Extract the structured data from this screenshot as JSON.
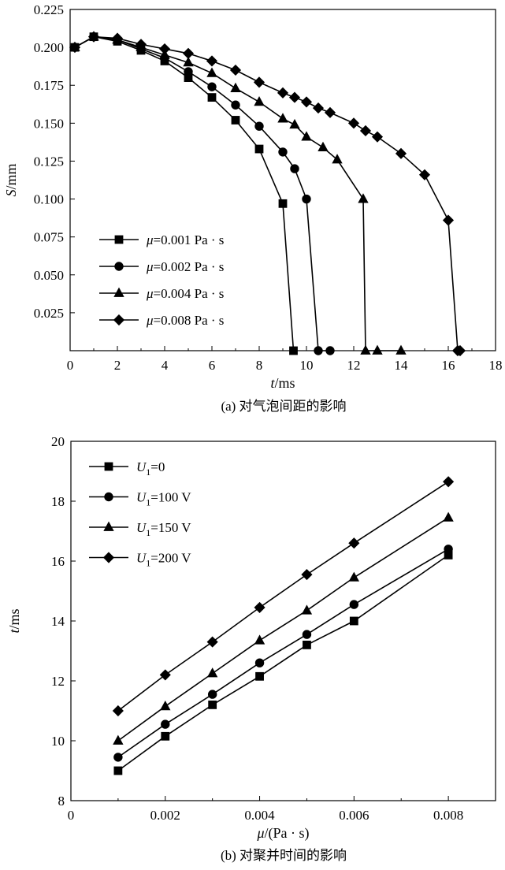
{
  "figure_a_caption": "(a) 对气泡间距的影响",
  "figure_b_caption": "(b) 对聚并时间的影响",
  "chart_data": [
    {
      "type": "line",
      "title": "",
      "xlabel": {
        "var": "t",
        "unit": "/ms"
      },
      "ylabel": {
        "var": "S",
        "unit": "/mm"
      },
      "xlim": [
        0,
        18
      ],
      "ylim": [
        0,
        0.225
      ],
      "xticks": [
        0,
        2,
        4,
        6,
        8,
        10,
        12,
        14,
        16,
        18
      ],
      "xtick_labels": [
        "0",
        "2",
        "4",
        "6",
        "8",
        "10",
        "12",
        "14",
        "16",
        "18"
      ],
      "yticks": [
        0.025,
        0.05,
        0.075,
        0.1,
        0.125,
        0.15,
        0.175,
        0.2,
        0.225
      ],
      "ytick_labels": [
        "0.025",
        "0.050",
        "0.075",
        "0.100",
        "0.125",
        "0.150",
        "0.175",
        "0.200",
        "0.225"
      ],
      "legend_position": "bottom-left",
      "series": [
        {
          "name": "μ=0.001 Pa · s",
          "label_var": "μ",
          "label_rest": "=0.001 Pa · s",
          "marker": "square",
          "x": [
            0.2,
            1,
            2,
            3,
            4,
            5,
            6,
            7,
            8,
            9,
            9.45
          ],
          "y": [
            0.2,
            0.207,
            0.204,
            0.198,
            0.191,
            0.18,
            0.167,
            0.152,
            0.133,
            0.097,
            0
          ]
        },
        {
          "name": "μ=0.002 Pa · s",
          "label_var": "μ",
          "label_rest": "=0.002 Pa · s",
          "marker": "circle",
          "x": [
            0.2,
            1,
            2,
            3,
            4,
            5,
            6,
            7,
            8,
            9,
            9.5,
            10,
            10.5,
            11
          ],
          "y": [
            0.2,
            0.207,
            0.205,
            0.199,
            0.193,
            0.184,
            0.174,
            0.162,
            0.148,
            0.131,
            0.12,
            0.1,
            0,
            0
          ]
        },
        {
          "name": "μ=0.004 Pa · s",
          "label_var": "μ",
          "label_rest": "=0.004 Pa · s",
          "marker": "triangle",
          "x": [
            0.2,
            1,
            2,
            3,
            4,
            5,
            6,
            7,
            8,
            9,
            9.5,
            10,
            10.7,
            11.3,
            12.4,
            12.5,
            13,
            14
          ],
          "y": [
            0.2,
            0.207,
            0.205,
            0.2,
            0.195,
            0.19,
            0.183,
            0.173,
            0.164,
            0.153,
            0.149,
            0.141,
            0.134,
            0.126,
            0.1,
            0,
            0,
            0
          ]
        },
        {
          "name": "μ=0.008 Pa · s",
          "label_var": "μ",
          "label_rest": "=0.008 Pa · s",
          "marker": "diamond",
          "x": [
            0.2,
            1,
            2,
            3,
            4,
            5,
            6,
            7,
            8,
            9,
            9.5,
            10,
            10.5,
            11,
            12,
            12.5,
            13,
            14,
            15,
            16,
            16.4,
            16.5
          ],
          "y": [
            0.2,
            0.207,
            0.206,
            0.202,
            0.199,
            0.196,
            0.191,
            0.185,
            0.177,
            0.17,
            0.167,
            0.164,
            0.16,
            0.157,
            0.15,
            0.145,
            0.141,
            0.13,
            0.116,
            0.086,
            0,
            0
          ]
        }
      ]
    },
    {
      "type": "line",
      "title": "",
      "xlabel": {
        "var": "μ",
        "unit": "/(Pa · s)"
      },
      "ylabel": {
        "var": "t",
        "unit": "/ms"
      },
      "xlim": [
        0,
        0.009
      ],
      "ylim": [
        8,
        20
      ],
      "xticks": [
        0,
        0.002,
        0.004,
        0.006,
        0.008
      ],
      "xtick_labels": [
        "0",
        "0.002",
        "0.004",
        "0.006",
        "0.008"
      ],
      "yticks": [
        8,
        10,
        12,
        14,
        16,
        18,
        20
      ],
      "ytick_labels": [
        "8",
        "10",
        "12",
        "14",
        "16",
        "18",
        "20"
      ],
      "legend_position": "top-left",
      "series": [
        {
          "name": "U1=0",
          "label_var": "U",
          "label_sub": "1",
          "label_rest": "=0",
          "marker": "square",
          "x": [
            0.001,
            0.002,
            0.003,
            0.004,
            0.005,
            0.006,
            0.008
          ],
          "y": [
            9.0,
            10.15,
            11.2,
            12.15,
            13.2,
            14.0,
            16.2
          ]
        },
        {
          "name": "U1=100 V",
          "label_var": "U",
          "label_sub": "1",
          "label_rest": "=100 V",
          "marker": "circle",
          "x": [
            0.001,
            0.002,
            0.003,
            0.004,
            0.005,
            0.006,
            0.008
          ],
          "y": [
            9.45,
            10.55,
            11.55,
            12.6,
            13.55,
            14.55,
            16.4
          ]
        },
        {
          "name": "U1=150 V",
          "label_var": "U",
          "label_sub": "1",
          "label_rest": "=150 V",
          "marker": "triangle",
          "x": [
            0.001,
            0.002,
            0.003,
            0.004,
            0.005,
            0.006,
            0.008
          ],
          "y": [
            10.0,
            11.15,
            12.25,
            13.35,
            14.35,
            15.45,
            17.45
          ]
        },
        {
          "name": "U1=200 V",
          "label_var": "U",
          "label_sub": "1",
          "label_rest": "=200 V",
          "marker": "diamond",
          "x": [
            0.001,
            0.002,
            0.003,
            0.004,
            0.005,
            0.006,
            0.008
          ],
          "y": [
            11.0,
            12.2,
            13.3,
            14.45,
            15.55,
            16.6,
            18.65
          ]
        }
      ]
    }
  ]
}
